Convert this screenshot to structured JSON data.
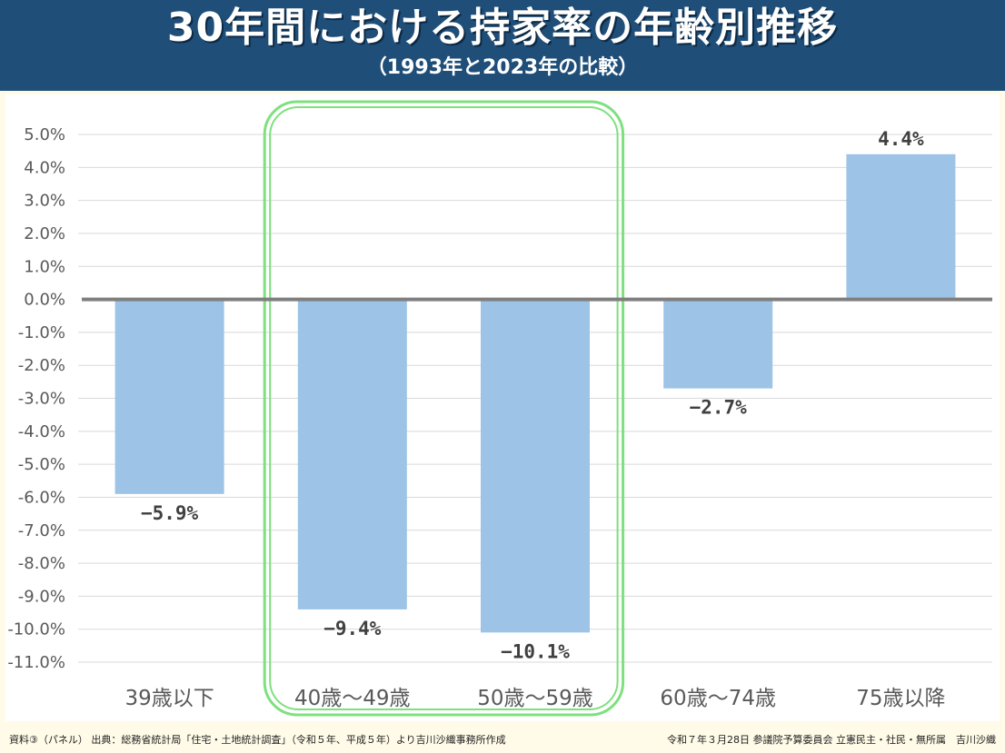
{
  "header": {
    "title": "30年間における持家率の年齢別推移",
    "subtitle": "（1993年と2023年の比較）"
  },
  "chart_data": {
    "type": "bar",
    "categories": [
      "39歳以下",
      "40歳～49歳",
      "50歳～59歳",
      "60歳～74歳",
      "75歳以降"
    ],
    "values": [
      -5.9,
      -9.4,
      -10.1,
      -2.7,
      4.4
    ],
    "value_labels": [
      "−5.9%",
      "−9.4%",
      "−10.1%",
      "−2.7%",
      "4.4%"
    ],
    "ylim": [
      -11,
      5
    ],
    "yticks": [
      5,
      4,
      3,
      2,
      1,
      0,
      -1,
      -2,
      -3,
      -4,
      -5,
      -6,
      -7,
      -8,
      -9,
      -10,
      -11
    ],
    "ytick_labels": [
      "5.0%",
      "4.0%",
      "3.0%",
      "2.0%",
      "1.0%",
      "0.0%",
      "-1.0%",
      "-2.0%",
      "-3.0%",
      "-4.0%",
      "-5.0%",
      "-6.0%",
      "-7.0%",
      "-8.0%",
      "-9.0%",
      "-10.0%",
      "-11.0%"
    ],
    "grid": true,
    "highlighted_categories": [
      "40歳～49歳",
      "50歳～59歳"
    ],
    "colors": {
      "bar": "#9dc3e6",
      "zero_line": "#7f7f7f",
      "grid": "#d9d9d9",
      "highlight": "#7ee07e",
      "tick_text": "#595959",
      "label_text": "#404040"
    }
  },
  "footer": {
    "source": "資料③（パネル） 出典：総務省統計局「住宅・土地統計調査」（令和５年、平成５年）より吉川沙織事務所作成",
    "credit": "令和７年３月28日 参議院予算委員会 立憲民主・社民・無所属　吉川沙織"
  }
}
